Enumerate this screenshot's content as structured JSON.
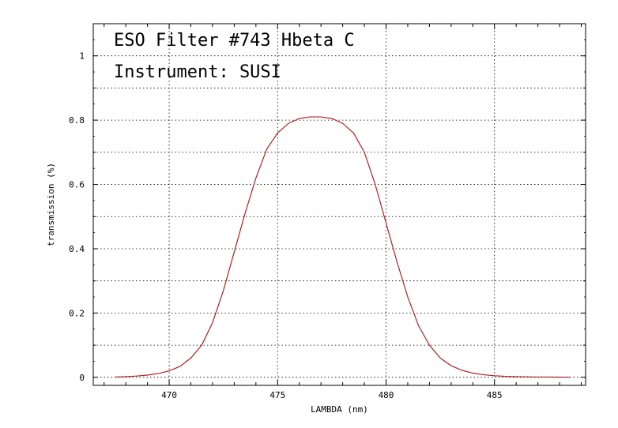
{
  "chart_data": {
    "type": "line",
    "title": "ESO Filter #743 Hbeta C",
    "annotations": [
      "ESO Filter #743 Hbeta C",
      "Instrument: SUSI"
    ],
    "xlabel": "LAMBDA (nm)",
    "ylabel": "transmission (%)",
    "xlim": [
      466.5,
      489.2
    ],
    "ylim": [
      -0.025,
      1.1
    ],
    "x_ticks": [
      470,
      475,
      480,
      485
    ],
    "x_tick_labels": [
      "470",
      "475",
      "480",
      "485"
    ],
    "y_ticks": [
      0,
      0.2,
      0.4,
      0.6,
      0.8,
      1
    ],
    "y_tick_labels": [
      "0",
      "0.2",
      "0.4",
      "0.6",
      "0.8",
      "1"
    ],
    "grid": true,
    "line_color": "#b22222",
    "series": [
      {
        "x": [
          467.5,
          468.0,
          468.5,
          469.0,
          469.5,
          470.0,
          470.5,
          471.0,
          471.5,
          472.0,
          472.5,
          473.0,
          473.5,
          474.0,
          474.5,
          475.0,
          475.5,
          476.0,
          476.5,
          477.0,
          477.5,
          478.0,
          478.5,
          479.0,
          479.5,
          480.0,
          480.5,
          481.0,
          481.5,
          482.0,
          482.5,
          483.0,
          483.5,
          484.0,
          484.5,
          485.0,
          485.5,
          486.0,
          486.5,
          487.0,
          487.5,
          488.0,
          488.5
        ],
        "y": [
          0.001,
          0.002,
          0.004,
          0.007,
          0.012,
          0.02,
          0.034,
          0.06,
          0.1,
          0.17,
          0.27,
          0.39,
          0.51,
          0.62,
          0.71,
          0.76,
          0.79,
          0.805,
          0.81,
          0.81,
          0.805,
          0.79,
          0.76,
          0.7,
          0.6,
          0.48,
          0.36,
          0.25,
          0.16,
          0.1,
          0.06,
          0.036,
          0.022,
          0.013,
          0.008,
          0.005,
          0.003,
          0.002,
          0.0015,
          0.001,
          0.001,
          0.0005,
          0.0003
        ]
      }
    ]
  }
}
